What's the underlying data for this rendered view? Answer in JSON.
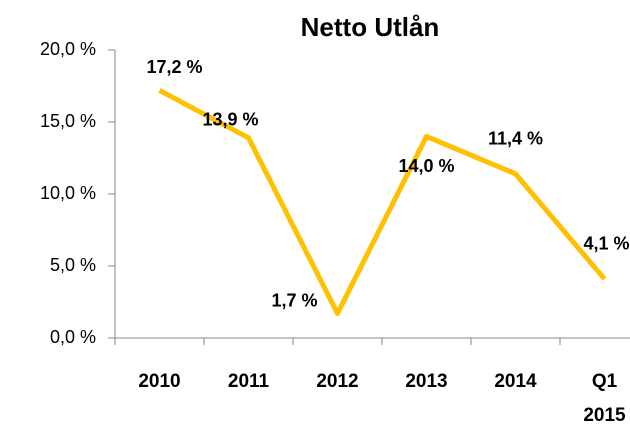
{
  "chart_data": {
    "type": "line",
    "title": "Netto Utlån",
    "categories": [
      "2010",
      "2011",
      "2012",
      "2013",
      "2014",
      "Q1 2015"
    ],
    "series": [
      {
        "name": "Netto Utlån",
        "color": "#FFC000",
        "values": [
          17.2,
          13.9,
          1.7,
          14.0,
          11.4,
          4.1
        ],
        "value_labels": [
          "17,2 %",
          "13,9 %",
          "1,7 %",
          "14,0 %",
          "11,4 %",
          "4,1 %"
        ]
      }
    ],
    "ylim": [
      0,
      20
    ],
    "yticks": [
      {
        "value": 0,
        "label": "0,0 %"
      },
      {
        "value": 5,
        "label": "5,0 %"
      },
      {
        "value": 10,
        "label": "10,0 %"
      },
      {
        "value": 15,
        "label": "15,0 %"
      },
      {
        "value": 20,
        "label": "20,0 %"
      }
    ],
    "grid": false
  }
}
